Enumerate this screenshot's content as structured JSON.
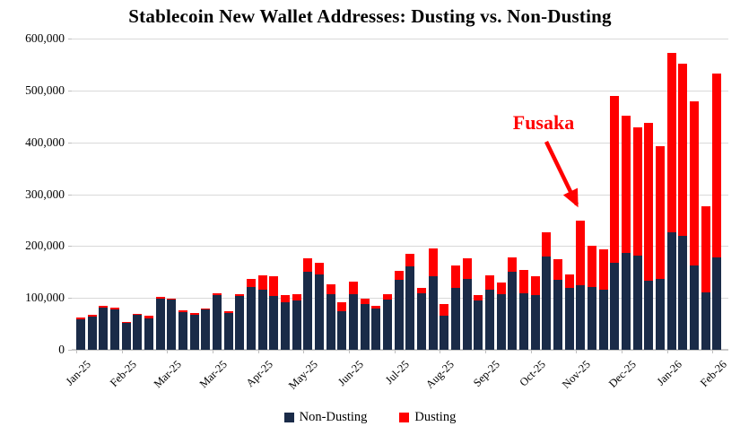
{
  "title": "Stablecoin New Wallet Addresses: Dusting vs. Non-Dusting",
  "legend": [
    {
      "label": "Non-Dusting",
      "color": "#1a2b48"
    },
    {
      "label": "Dusting",
      "color": "#ff0000"
    }
  ],
  "annotation": {
    "text": "Fusaka",
    "color": "#ff0000"
  },
  "colors": {
    "non_dusting": "#1a2b48",
    "dusting": "#ff0000",
    "gridline": "#d9d9d9",
    "axis": "#c9c9c9",
    "text": "#000000"
  },
  "chart_data": {
    "type": "bar",
    "stacked": true,
    "title": "Stablecoin New Wallet Addresses: Dusting vs. Non-Dusting",
    "xlabel": "",
    "ylabel": "",
    "ylim": [
      0,
      600000
    ],
    "y_ticks": [
      0,
      100000,
      200000,
      300000,
      400000,
      500000,
      600000
    ],
    "grid": "horizontal",
    "legend_position": "bottom-center",
    "x_unit": "week",
    "bars_per_tick": 4,
    "x_tick_labels": [
      "Jan-25",
      "Feb-25",
      "Mar-25",
      "Mar-25",
      "Apr-25",
      "May-25",
      "Jun-25",
      "Jul-25",
      "Aug-25",
      "Sep-25",
      "Oct-25",
      "Nov-25",
      "Dec-25",
      "Jan-26",
      "Feb-26"
    ],
    "series": [
      {
        "name": "Non-Dusting",
        "color": "#1a2b48",
        "values": [
          59000,
          64000,
          82000,
          78000,
          52000,
          67000,
          61000,
          99000,
          96000,
          73000,
          68000,
          77000,
          106000,
          71000,
          104000,
          121000,
          116000,
          104000,
          92000,
          95000,
          150000,
          146000,
          107000,
          74000,
          107000,
          88000,
          79000,
          96000,
          135000,
          160000,
          109000,
          141000,
          66000,
          120000,
          137000,
          95000,
          116000,
          108000,
          151000,
          109000,
          105000,
          179000,
          135000,
          120000,
          125000,
          121000,
          116000,
          168000,
          187000,
          182000,
          134000,
          137000,
          226000,
          220000,
          163000,
          111000,
          178000
        ]
      },
      {
        "name": "Dusting",
        "color": "#ff0000",
        "values": [
          3000,
          4000,
          3000,
          3000,
          2000,
          3000,
          4000,
          3000,
          3000,
          3000,
          3000,
          3000,
          3000,
          3000,
          4000,
          16000,
          28000,
          37000,
          13000,
          12000,
          26000,
          21000,
          19000,
          17000,
          25000,
          10000,
          5000,
          11000,
          18000,
          25000,
          10000,
          55000,
          22000,
          42000,
          40000,
          11000,
          28000,
          21000,
          27000,
          45000,
          36000,
          48000,
          39000,
          25000,
          124000,
          79000,
          77000,
          322000,
          264000,
          246000,
          303000,
          256000,
          347000,
          332000,
          316000,
          166000,
          354000
        ]
      }
    ],
    "annotation": {
      "text": "Fusaka",
      "points_to_bar_index": 45,
      "arrow": true
    }
  }
}
